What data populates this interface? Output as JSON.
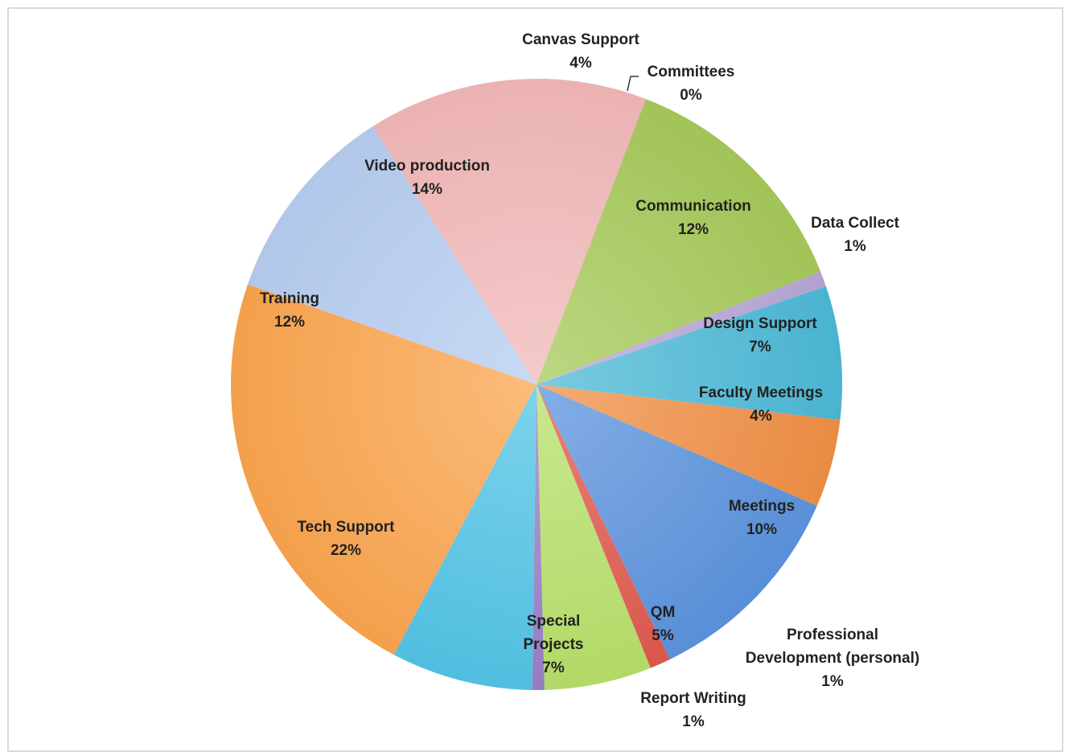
{
  "chart_data": {
    "type": "pie",
    "title": "",
    "start": "12 o'clock",
    "direction": "clockwise",
    "slices": [
      {
        "label": "Canvas Support",
        "value": 4,
        "value_label": "4%",
        "color": "#6f96d3"
      },
      {
        "label": "Committees",
        "value": 0,
        "value_label": "0%",
        "color": "#d97a7a"
      },
      {
        "label": "Communication",
        "value": 12,
        "value_label": "12%",
        "color": "#a6c95a"
      },
      {
        "label": "Data Collect",
        "value": 1,
        "value_label": "1%",
        "color": "#b6a6d6"
      },
      {
        "label": "Design Support",
        "value": 7,
        "value_label": "7%",
        "color": "#4cb9d6"
      },
      {
        "label": "Faculty Meetings",
        "value": 4,
        "value_label": "4%",
        "color": "#f08f45"
      },
      {
        "label": "Meetings",
        "value": 10,
        "value_label": "10%",
        "color": "#5c93de"
      },
      {
        "label": "Professional Development (personal)",
        "value": 1,
        "value_label": "1%",
        "color": "#e05a4e"
      },
      {
        "label": "QM",
        "value": 5,
        "value_label": "5%",
        "color": "#b7e06a"
      },
      {
        "label": "Report Writing",
        "value": 1,
        "value_label": "1%",
        "color": "#9a80c8"
      },
      {
        "label": "Special Projects",
        "value": 7,
        "value_label": "7%",
        "color": "#52c4e6"
      },
      {
        "label": "Tech Support",
        "value": 22,
        "value_label": "22%",
        "color": "#fba54e"
      },
      {
        "label": "Training",
        "value": 12,
        "value_label": "12%",
        "color": "#b6cdf0"
      },
      {
        "label": "Video production",
        "value": 14,
        "value_label": "14%",
        "color": "#f2b8b8"
      }
    ]
  }
}
